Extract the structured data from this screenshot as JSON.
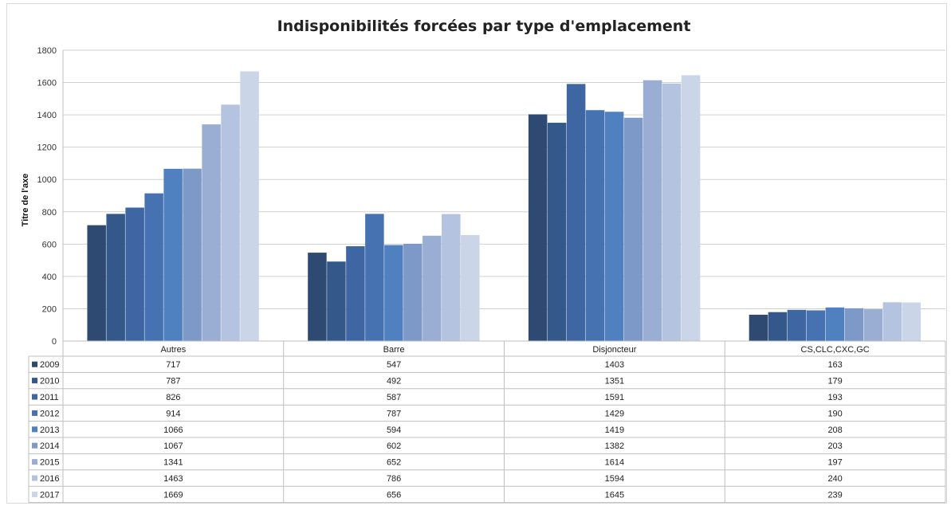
{
  "chart_data": {
    "type": "bar",
    "title": "Indisponibilités forcées par type d'emplacement",
    "ylabel": "Titre de l'axe",
    "xlabel": "",
    "ylim": [
      0,
      1800
    ],
    "yticks": [
      0,
      200,
      400,
      600,
      800,
      1000,
      1200,
      1400,
      1600,
      1800
    ],
    "grid": true,
    "legend": "data-table",
    "categories": [
      "Autres",
      "Barre",
      "Disjoncteur",
      "CS,CLC,CXC,GC"
    ],
    "series": [
      {
        "name": "2009",
        "color": "#2e4a72",
        "values": [
          717,
          547,
          1403,
          163
        ]
      },
      {
        "name": "2010",
        "color": "#35588a",
        "values": [
          787,
          492,
          1351,
          179
        ]
      },
      {
        "name": "2011",
        "color": "#3d66a2",
        "values": [
          826,
          587,
          1591,
          193
        ]
      },
      {
        "name": "2012",
        "color": "#4672b2",
        "values": [
          914,
          787,
          1429,
          190
        ]
      },
      {
        "name": "2013",
        "color": "#4f80c0",
        "values": [
          1066,
          594,
          1419,
          208
        ]
      },
      {
        "name": "2014",
        "color": "#7d99c8",
        "values": [
          1067,
          602,
          1382,
          203
        ]
      },
      {
        "name": "2015",
        "color": "#9aaed3",
        "values": [
          1341,
          652,
          1614,
          197
        ]
      },
      {
        "name": "2016",
        "color": "#b4c3df",
        "values": [
          1463,
          786,
          1594,
          240
        ]
      },
      {
        "name": "2017",
        "color": "#cad5e8",
        "values": [
          1669,
          656,
          1645,
          239
        ]
      }
    ]
  }
}
